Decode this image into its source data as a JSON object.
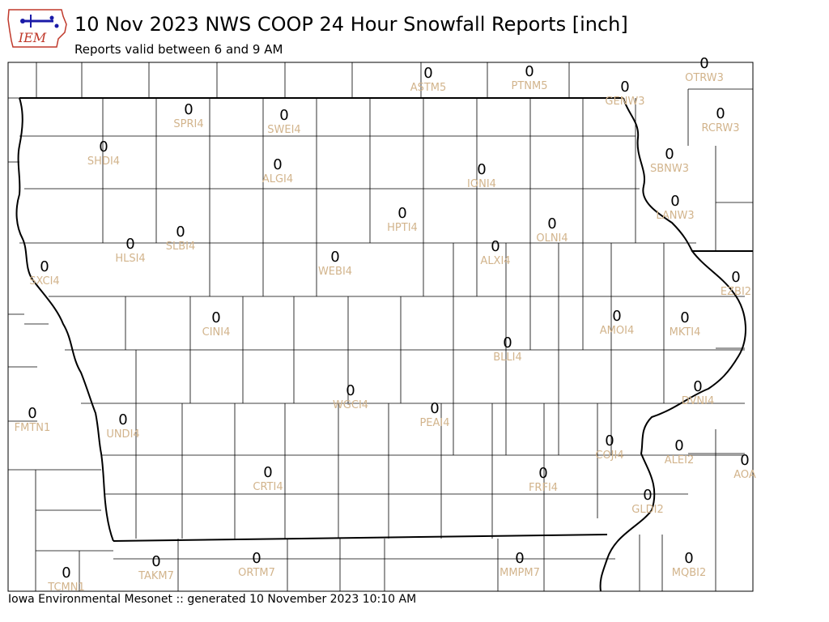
{
  "header": {
    "logo_text": "IEM",
    "title": "10 Nov 2023 NWS COOP 24 Hour Snowfall Reports [inch]",
    "subtitle": "Reports valid between 6 and 9 AM"
  },
  "footer": {
    "text": "Iowa Environmental Mesonet :: generated 10 November 2023 10:10 AM"
  },
  "colors": {
    "station_label": "#d2b48c",
    "value": "#000000",
    "county_line": "#000000",
    "state_line": "#000000",
    "logo_blue": "#1a1aa8",
    "logo_red": "#c0392b"
  },
  "stations": [
    {
      "id": "ASTM5",
      "value": "0"
    },
    {
      "id": "PTNM5",
      "value": "0"
    },
    {
      "id": "OTRW3",
      "value": "0"
    },
    {
      "id": "GENW3",
      "value": "0"
    },
    {
      "id": "RCRW3",
      "value": "0"
    },
    {
      "id": "SPRI4",
      "value": "0"
    },
    {
      "id": "SWEI4",
      "value": "0"
    },
    {
      "id": "SHDI4",
      "value": "0"
    },
    {
      "id": "ALGI4",
      "value": "0"
    },
    {
      "id": "IONI4",
      "value": "0"
    },
    {
      "id": "SBNW3",
      "value": "0"
    },
    {
      "id": "LANW3",
      "value": "0"
    },
    {
      "id": "HPTI4",
      "value": "0"
    },
    {
      "id": "OLNI4",
      "value": "0"
    },
    {
      "id": "SLBI4",
      "value": "0"
    },
    {
      "id": "HLSI4",
      "value": "0"
    },
    {
      "id": "ALXI4",
      "value": "0"
    },
    {
      "id": "WEBI4",
      "value": "0"
    },
    {
      "id": "SXCI4",
      "value": "0"
    },
    {
      "id": "EZBI2",
      "value": "0"
    },
    {
      "id": "CINI4",
      "value": "0"
    },
    {
      "id": "AMOI4",
      "value": "0"
    },
    {
      "id": "MKTI4",
      "value": "0"
    },
    {
      "id": "BLLI4",
      "value": "0"
    },
    {
      "id": "DVNI4",
      "value": "0"
    },
    {
      "id": "WGCI4",
      "value": "0"
    },
    {
      "id": "PEAI4",
      "value": "0"
    },
    {
      "id": "FMTN1",
      "value": "0"
    },
    {
      "id": "UNDI4",
      "value": "0"
    },
    {
      "id": "COJI4",
      "value": "0"
    },
    {
      "id": "ALEI2",
      "value": "0"
    },
    {
      "id": "AOA",
      "value": "0"
    },
    {
      "id": "CRTI4",
      "value": "0"
    },
    {
      "id": "FRFI4",
      "value": "0"
    },
    {
      "id": "GLDI2",
      "value": "0"
    },
    {
      "id": "TAKM7",
      "value": "0"
    },
    {
      "id": "ORTM7",
      "value": "0"
    },
    {
      "id": "MMPM7",
      "value": "0"
    },
    {
      "id": "MQBI2",
      "value": "0"
    },
    {
      "id": "TCMN1",
      "value": "0"
    }
  ]
}
